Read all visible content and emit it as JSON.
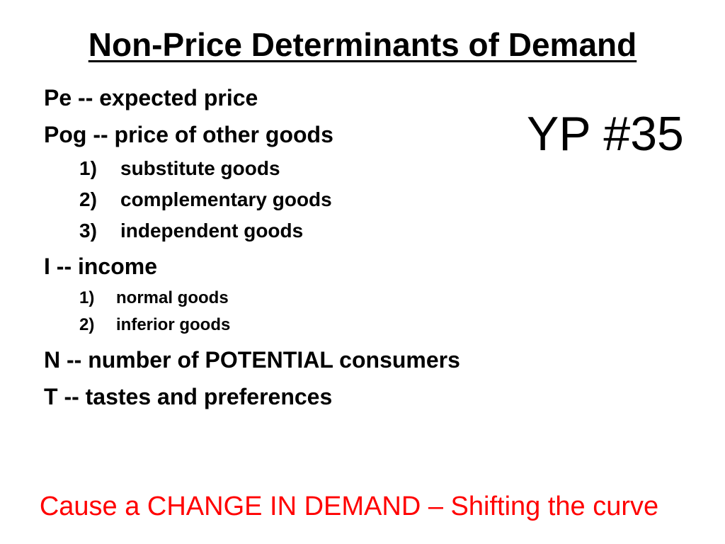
{
  "slide": {
    "title": "Non-Price Determinants of Demand",
    "badge": "YP #35",
    "items": [
      {
        "text": "Pe -- expected price"
      },
      {
        "text": "Pog -- price of other goods",
        "sub": [
          {
            "num": "1)",
            "text": "substitute goods"
          },
          {
            "num": "2)",
            "text": "complementary goods"
          },
          {
            "num": "3)",
            "text": "independent goods"
          }
        ]
      },
      {
        "text": "I -- income",
        "sub": [
          {
            "num": "1)",
            "text": "normal goods"
          },
          {
            "num": "2)",
            "text": "inferior goods"
          }
        ]
      },
      {
        "text": "N -- number of POTENTIAL consumers"
      },
      {
        "text": "T -- tastes and preferences"
      }
    ],
    "footer": "Cause a CHANGE IN DEMAND – Shifting the curve",
    "colors": {
      "text": "#000000",
      "footer": "#ff0000",
      "background": "#ffffff"
    }
  }
}
